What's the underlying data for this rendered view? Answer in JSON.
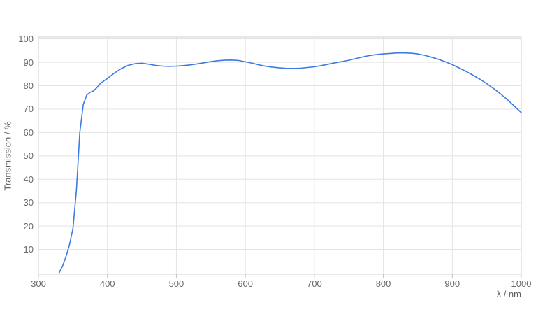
{
  "chart_data": {
    "type": "line",
    "title": "",
    "xlabel": "λ / nm",
    "ylabel": "Transmission / %",
    "xlim": [
      300,
      1000
    ],
    "ylim": [
      0,
      100
    ],
    "x_ticks": [
      300,
      400,
      500,
      600,
      700,
      800,
      900,
      1000
    ],
    "y_ticks": [
      10,
      20,
      30,
      40,
      50,
      60,
      70,
      80,
      90,
      100
    ],
    "grid": true,
    "legend_position": "none",
    "series": [
      {
        "name": "Transmission",
        "color": "#3d7ae4",
        "x": [
          330,
          335,
          340,
          345,
          350,
          355,
          360,
          365,
          370,
          375,
          380,
          385,
          390,
          395,
          400,
          410,
          420,
          430,
          440,
          450,
          460,
          470,
          480,
          490,
          500,
          510,
          520,
          530,
          540,
          550,
          560,
          570,
          580,
          590,
          600,
          610,
          620,
          630,
          640,
          650,
          660,
          670,
          680,
          690,
          700,
          710,
          720,
          730,
          740,
          750,
          760,
          770,
          780,
          790,
          800,
          810,
          820,
          830,
          840,
          850,
          860,
          870,
          880,
          890,
          900,
          910,
          920,
          930,
          940,
          950,
          960,
          970,
          980,
          990,
          1000
        ],
        "y": [
          0,
          3,
          7,
          12,
          19,
          35,
          60,
          72,
          76,
          77.2,
          77.8,
          79.3,
          81,
          82.1,
          83.1,
          85.4,
          87.3,
          88.7,
          89.4,
          89.6,
          89.2,
          88.7,
          88.4,
          88.3,
          88.4,
          88.6,
          88.9,
          89.3,
          89.8,
          90.3,
          90.7,
          90.9,
          91,
          90.8,
          90.2,
          89.6,
          88.9,
          88.3,
          87.9,
          87.6,
          87.4,
          87.4,
          87.5,
          87.8,
          88.1,
          88.6,
          89.2,
          89.8,
          90.3,
          90.9,
          91.6,
          92.3,
          92.9,
          93.3,
          93.6,
          93.8,
          94,
          94,
          93.9,
          93.6,
          93,
          92.2,
          91.3,
          90.2,
          89,
          87.6,
          86.1,
          84.5,
          82.8,
          80.9,
          78.8,
          76.5,
          74,
          71.3,
          68.5
        ]
      }
    ]
  },
  "colors": {
    "background": "#ffffff",
    "line": "#3d7ae4",
    "gridline": "#e3e3e3",
    "plot_border": "#d2d2d2",
    "tick_mark": "#c2c2c2",
    "tick_text": "#6a6a6a",
    "axis_title_text": "#5f5f5f"
  }
}
